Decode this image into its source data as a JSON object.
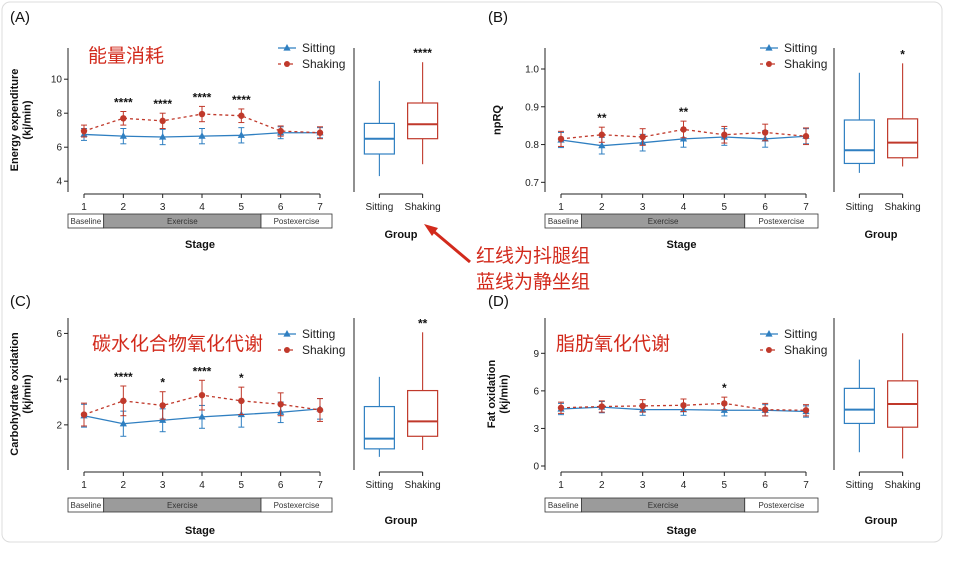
{
  "colors": {
    "sitting": "#2f7fc1",
    "shaking": "#c0392b",
    "annotation": "#d22a1c",
    "exercise_band": "#9b9b9b"
  },
  "annotation": {
    "line1": "红线为抖腿组",
    "line2": "蓝线为静坐组"
  },
  "chart_data": [
    {
      "type": "line",
      "panel_label": "(A)",
      "title_cn": "能量消耗",
      "xlabel": "Stage",
      "ylabel": "Energy expenditure (kj/min)",
      "ylabel_line1": "Energy expenditure",
      "ylabel_line2": "(kj/min)",
      "x": [
        1,
        2,
        3,
        4,
        5,
        6,
        7
      ],
      "ylim": [
        3.6,
        11.6
      ],
      "yticks": [
        "4",
        "6",
        "8",
        "10"
      ],
      "series": [
        {
          "name": "Sitting",
          "values": [
            6.75,
            6.65,
            6.6,
            6.65,
            6.7,
            6.85,
            6.85
          ],
          "err": [
            0.35,
            0.45,
            0.45,
            0.45,
            0.45,
            0.35,
            0.3
          ]
        },
        {
          "name": "Shaking",
          "values": [
            6.95,
            7.7,
            7.55,
            7.95,
            7.85,
            6.95,
            6.85
          ],
          "err": [
            0.35,
            0.4,
            0.45,
            0.45,
            0.4,
            0.3,
            0.35
          ]
        }
      ],
      "significance": [
        "",
        "****",
        "****",
        "****",
        "****",
        "",
        ""
      ],
      "stage_labels": [
        "Baseline",
        "Exercise",
        "Postexercise"
      ],
      "group": {
        "xlabel": "Group",
        "categories": [
          "Sitting",
          "Shaking"
        ],
        "boxes": [
          {
            "min": 4.3,
            "q1": 5.6,
            "median": 6.5,
            "q3": 7.4,
            "max": 9.9
          },
          {
            "min": 5.0,
            "q1": 6.5,
            "median": 7.35,
            "q3": 8.6,
            "max": 11.0
          }
        ],
        "significance": "****"
      }
    },
    {
      "type": "line",
      "panel_label": "(B)",
      "title_cn": "",
      "xlabel": "Stage",
      "ylabel": "npRQ",
      "ylabel_line1": "npRQ",
      "ylabel_line2": "",
      "x": [
        1,
        2,
        3,
        4,
        5,
        6,
        7
      ],
      "ylim": [
        0.685,
        1.045
      ],
      "yticks": [
        "0.7",
        "0.8",
        "0.9",
        "1.0"
      ],
      "series": [
        {
          "name": "Sitting",
          "values": [
            0.812,
            0.797,
            0.805,
            0.815,
            0.82,
            0.815,
            0.822
          ],
          "err": [
            0.02,
            0.022,
            0.022,
            0.022,
            0.022,
            0.022,
            0.02
          ]
        },
        {
          "name": "Shaking",
          "values": [
            0.815,
            0.826,
            0.82,
            0.84,
            0.826,
            0.832,
            0.822
          ],
          "err": [
            0.02,
            0.02,
            0.022,
            0.022,
            0.022,
            0.022,
            0.022
          ]
        }
      ],
      "significance": [
        "",
        "**",
        "",
        "**",
        "",
        "",
        ""
      ],
      "stage_labels": [
        "Baseline",
        "Exercise",
        "Postexercise"
      ],
      "group": {
        "xlabel": "Group",
        "categories": [
          "Sitting",
          "Shaking"
        ],
        "boxes": [
          {
            "min": 0.725,
            "q1": 0.75,
            "median": 0.785,
            "q3": 0.865,
            "max": 0.99
          },
          {
            "min": 0.742,
            "q1": 0.765,
            "median": 0.805,
            "q3": 0.868,
            "max": 1.015
          }
        ],
        "significance": "*"
      }
    },
    {
      "type": "line",
      "panel_label": "(C)",
      "title_cn": "碳水化合物氧化代谢",
      "xlabel": "Stage",
      "ylabel": "Carbohydrate oxidation (kj/min)",
      "ylabel_line1": "Carbohydrate oxidation",
      "ylabel_line2": "(kj/min)",
      "x": [
        1,
        2,
        3,
        4,
        5,
        6,
        7
      ],
      "ylim": [
        0.2,
        6.5
      ],
      "yticks": [
        "2",
        "4",
        "6"
      ],
      "series": [
        {
          "name": "Sitting",
          "values": [
            2.4,
            2.05,
            2.2,
            2.35,
            2.45,
            2.55,
            2.7
          ],
          "err": [
            0.5,
            0.55,
            0.5,
            0.5,
            0.55,
            0.45,
            0.45
          ]
        },
        {
          "name": "Shaking",
          "values": [
            2.45,
            3.05,
            2.85,
            3.3,
            3.05,
            2.9,
            2.65
          ],
          "err": [
            0.5,
            0.65,
            0.6,
            0.65,
            0.6,
            0.5,
            0.5
          ]
        }
      ],
      "significance": [
        "",
        "****",
        "*",
        "****",
        "*",
        "",
        ""
      ],
      "stage_labels": [
        "Baseline",
        "Exercise",
        "Postexercise"
      ],
      "group": {
        "xlabel": "Group",
        "categories": [
          "Sitting",
          "Shaking"
        ],
        "boxes": [
          {
            "min": 0.6,
            "q1": 0.95,
            "median": 1.4,
            "q3": 2.8,
            "max": 4.1
          },
          {
            "min": 0.9,
            "q1": 1.5,
            "median": 2.15,
            "q3": 3.5,
            "max": 6.05
          }
        ],
        "significance": "**"
      }
    },
    {
      "type": "line",
      "panel_label": "(D)",
      "title_cn": "脂肪氧化代谢",
      "xlabel": "Stage",
      "ylabel": "Fat oxidation (kj/min)",
      "ylabel_line1": "Fat oxidation",
      "ylabel_line2": "(kj/min)",
      "x": [
        1,
        2,
        3,
        4,
        5,
        6,
        7
      ],
      "ylim": [
        0,
        11.5
      ],
      "yticks": [
        "0",
        "3",
        "6",
        "9"
      ],
      "series": [
        {
          "name": "Sitting",
          "values": [
            4.55,
            4.7,
            4.5,
            4.5,
            4.45,
            4.45,
            4.35
          ],
          "err": [
            0.45,
            0.45,
            0.45,
            0.45,
            0.45,
            0.45,
            0.45
          ]
        },
        {
          "name": "Shaking",
          "values": [
            4.65,
            4.75,
            4.8,
            4.85,
            5.0,
            4.5,
            4.45
          ],
          "err": [
            0.45,
            0.45,
            0.5,
            0.5,
            0.5,
            0.5,
            0.45
          ]
        }
      ],
      "significance": [
        "",
        "",
        "",
        "",
        "*",
        "",
        ""
      ],
      "stage_labels": [
        "Baseline",
        "Exercise",
        "Postexercise"
      ],
      "group": {
        "xlabel": "Group",
        "categories": [
          "Sitting",
          "Shaking"
        ],
        "boxes": [
          {
            "min": 1.1,
            "q1": 3.4,
            "median": 4.5,
            "q3": 6.2,
            "max": 8.5
          },
          {
            "min": 0.6,
            "q1": 3.1,
            "median": 4.95,
            "q3": 6.8,
            "max": 10.6
          }
        ],
        "significance": ""
      }
    }
  ]
}
